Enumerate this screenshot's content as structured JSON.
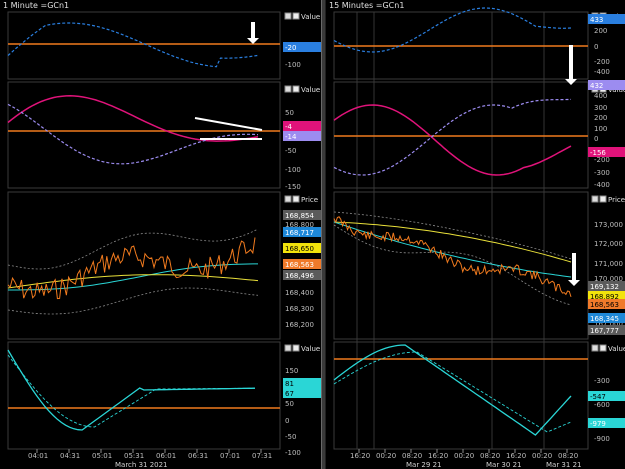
{
  "left": {
    "title": "1 Minute =GCn1",
    "pane_labels": {
      "value": "Value",
      "price": "Price"
    },
    "pane1": {
      "ticks": [
        "-100"
      ],
      "last_value": "-20",
      "last_value_color": "#2a7fe0"
    },
    "pane2": {
      "ticks": [
        "50",
        "0",
        "-50",
        "-100",
        "-150"
      ],
      "last_values": [
        "-4",
        "-14"
      ],
      "last_value_colors": [
        "#e0137a",
        "#9c8cf0"
      ]
    },
    "pane3": {
      "ticks": [
        "168,800",
        "168,700",
        "168,600",
        "168,400",
        "168,300",
        "168,200"
      ],
      "price_tags": [
        "168,854",
        "168,717",
        "168,650",
        "168,563",
        "168,496"
      ],
      "price_tag_colors": [
        "#5b5b5b",
        "#1e88d8",
        "#f2e30c",
        "#f07a2a",
        "#5b5b5b"
      ]
    },
    "pane4": {
      "ticks": [
        "150",
        "100",
        "50",
        "0",
        "-50",
        "-100"
      ],
      "last_values": [
        "81",
        "67"
      ],
      "last_value_colors": [
        "#2ad6d6",
        "#2ad6d6"
      ]
    },
    "xaxis": {
      "ticks": [
        "04:01",
        "04:31",
        "05:01",
        "05:31",
        "06:01",
        "06:31",
        "07:01",
        "07:31"
      ],
      "date": "March 31 2021"
    }
  },
  "right": {
    "title": "15 Minutes =GCn1",
    "pane_labels": {
      "value": "Value",
      "price": "Price"
    },
    "pane1": {
      "ticks": [
        "200",
        "0",
        "-200",
        "-400"
      ],
      "last_value": "433",
      "last_value_color": "#2a7fe0"
    },
    "pane2": {
      "ticks": [
        "400",
        "300",
        "200",
        "100",
        "0",
        "-100",
        "-200",
        "-300",
        "-400"
      ],
      "last_values": [
        "432",
        "-156"
      ],
      "last_value_colors": [
        "#9c8cf0",
        "#e0137a"
      ]
    },
    "pane3": {
      "ticks": [
        "173,000",
        "172,000",
        "171,000",
        "170,000",
        "168,000",
        "167,000"
      ],
      "price_tags": [
        "169,132",
        "168,892",
        "168,563",
        "168,345",
        "167,777"
      ],
      "price_tag_colors": [
        "#5b5b5b",
        "#f2e30c",
        "#f07a2a",
        "#1e88d8",
        "#5b5b5b"
      ]
    },
    "pane4": {
      "ticks": [
        "-300",
        "-600",
        "-900"
      ],
      "last_values": [
        "-547",
        "-979"
      ],
      "last_value_colors": [
        "#2ad6d6",
        "#2ad6d6"
      ]
    },
    "xaxis": {
      "ticks": [
        "16:20",
        "00:20",
        "08:20",
        "16:20",
        "00:20",
        "08:20",
        "16:20",
        "00:20",
        "08:20"
      ],
      "dates": [
        "Mar 29 21",
        "Mar 30 21",
        "Mar 31 21"
      ]
    }
  },
  "colors": {
    "orange": "#f07a1e",
    "cyan": "#2ad6d6",
    "blue": "#2a7fe0",
    "magenta": "#e0137a",
    "lavender": "#9c8cf0",
    "yellow": "#e9e03a",
    "grey": "#8a8a8a"
  }
}
